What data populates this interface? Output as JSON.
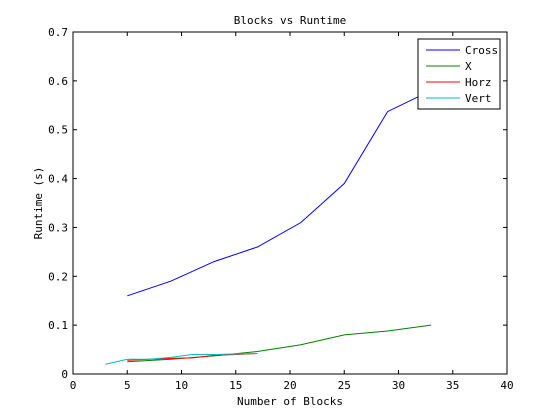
{
  "chart_data": {
    "type": "line",
    "title": "Blocks vs Runtime",
    "xlabel": "Number of Blocks",
    "ylabel": "Runtime (s)",
    "xlim": [
      0,
      40
    ],
    "ylim": [
      0,
      0.7
    ],
    "xticks": [
      0,
      5,
      10,
      15,
      20,
      25,
      30,
      35,
      40
    ],
    "yticks": [
      0,
      0.1,
      0.2,
      0.3,
      0.4,
      0.5,
      0.6,
      0.7
    ],
    "grid": false,
    "legend_position": "top-right",
    "series": [
      {
        "name": "Cross",
        "color": "#0000ff",
        "x": [
          5,
          9,
          13,
          17,
          21,
          25,
          29,
          33
        ],
        "y": [
          0.16,
          0.19,
          0.23,
          0.26,
          0.31,
          0.39,
          0.537,
          0.58
        ]
      },
      {
        "name": "X",
        "color": "#008000",
        "x": [
          5,
          9,
          13,
          17,
          21,
          25,
          29,
          33
        ],
        "y": [
          0.025,
          0.03,
          0.037,
          0.046,
          0.06,
          0.08,
          0.088,
          0.1
        ]
      },
      {
        "name": "Horz",
        "color": "#ff0000",
        "x": [
          5,
          7,
          9,
          11,
          13,
          15,
          17
        ],
        "y": [
          0.028,
          0.03,
          0.032,
          0.033,
          0.038,
          0.04,
          0.042
        ]
      },
      {
        "name": "Vert",
        "color": "#00bfbf",
        "x": [
          3,
          5,
          7,
          9,
          11,
          13,
          15,
          17
        ],
        "y": [
          0.02,
          0.03,
          0.03,
          0.034,
          0.04,
          0.04,
          0.041,
          0.042
        ]
      }
    ]
  }
}
